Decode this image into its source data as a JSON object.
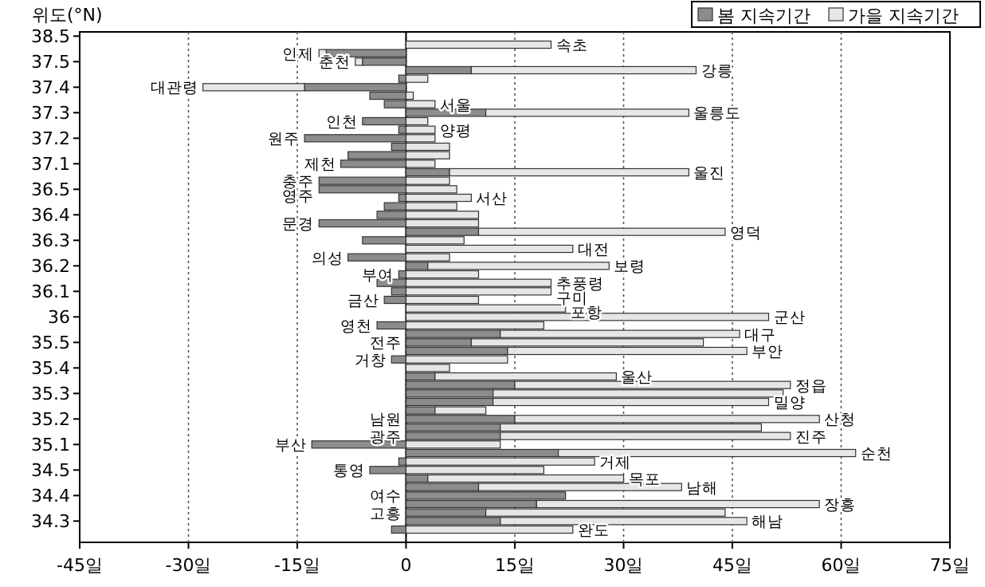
{
  "chart_data": {
    "type": "bar",
    "orientation": "horizontal",
    "stacked": true,
    "ylabel": "위도(°N)",
    "categories": [
      "38.5",
      null,
      null,
      "37.5",
      null,
      null,
      "37.4",
      null,
      null,
      "37.3",
      null,
      null,
      "37.2",
      null,
      null,
      "37.1",
      null,
      null,
      "36.5",
      null,
      null,
      "36.4",
      null,
      null,
      "36.3",
      null,
      null,
      "36.2",
      null,
      null,
      "36.1",
      null,
      null,
      "36",
      null,
      null,
      "35.5",
      null,
      null,
      "35.4",
      null,
      null,
      "35.3",
      null,
      null,
      "35.2",
      null,
      null,
      "35.1",
      null,
      null,
      "34.5",
      null,
      null,
      "34.4",
      null,
      null,
      "34.3",
      null,
      null
    ],
    "series": [
      {
        "name": "봄 지속기간",
        "color": "#8c8c8c",
        "values": [
          null,
          0,
          -11,
          -6,
          9,
          -1,
          -14,
          -5,
          -3,
          11,
          -6,
          -1,
          -14,
          -2,
          -8,
          -9,
          6,
          -12,
          -12,
          -1,
          -3,
          -4,
          -12,
          10,
          -6,
          0,
          -8,
          3,
          -1,
          -4,
          -2,
          -3,
          0,
          0,
          -4,
          13,
          9,
          14,
          -2,
          0,
          4,
          15,
          12,
          12,
          4,
          15,
          13,
          13,
          -13,
          21,
          -1,
          -5,
          3,
          10,
          22,
          18,
          11,
          13,
          -2,
          null
        ],
        "value_labels": [
          null,
          null,
          null,
          null,
          null,
          null,
          null,
          null,
          null,
          null,
          "인천",
          null,
          "원주",
          null,
          null,
          "제천",
          null,
          "충주",
          "영주",
          null,
          null,
          null,
          "문경",
          null,
          null,
          null,
          "의성",
          null,
          "부여",
          null,
          null,
          "금산",
          null,
          null,
          "영천",
          null,
          "전주",
          null,
          "거창",
          null,
          null,
          null,
          null,
          null,
          null,
          "남원",
          null,
          "광주",
          "부산",
          null,
          null,
          "통영",
          null,
          null,
          "여수",
          null,
          "고흥",
          null,
          null,
          null
        ]
      },
      {
        "name": "가을 지속기간",
        "color": "#e6e6e6",
        "values": [
          null,
          20,
          -1,
          -1,
          31,
          3,
          -14,
          1,
          4,
          28,
          3,
          4,
          4,
          6,
          6,
          4,
          33,
          6,
          7,
          9,
          7,
          10,
          10,
          34,
          8,
          23,
          6,
          25,
          10,
          20,
          20,
          10,
          22,
          50,
          19,
          33,
          32,
          33,
          14,
          6,
          25,
          38,
          40,
          38,
          7,
          42,
          36,
          40,
          13,
          41,
          26,
          19,
          27,
          28,
          0,
          39,
          33,
          34,
          23,
          null
        ],
        "value_labels": [
          null,
          "속초",
          "인제",
          "춘천",
          "강릉",
          null,
          "대관령",
          null,
          "서울",
          "울릉도",
          null,
          "양평",
          null,
          null,
          null,
          null,
          "울진",
          null,
          null,
          "서산",
          null,
          null,
          null,
          "영덕",
          null,
          "대전",
          null,
          "보령",
          null,
          "추풍령",
          "구미",
          null,
          "포항",
          "군산",
          null,
          "대구",
          null,
          "부안",
          null,
          null,
          "울산",
          "정읍",
          null,
          "밀양",
          null,
          "산청",
          null,
          "진주",
          null,
          "순천",
          "거제",
          null,
          "목포",
          "남해",
          null,
          "장흥",
          null,
          "해남",
          "완도",
          null
        ]
      }
    ],
    "xlim": [
      -45,
      75
    ],
    "xticks": [
      {
        "value": -45,
        "label": "-45일"
      },
      {
        "value": -30,
        "label": "-30일"
      },
      {
        "value": -15,
        "label": "-15일"
      },
      0,
      {
        "value": 15,
        "label": "15일"
      },
      {
        "value": 30,
        "label": "30일"
      },
      {
        "value": 45,
        "label": "45일"
      },
      {
        "value": 60,
        "label": "60일"
      },
      {
        "value": 75,
        "label": "75일"
      }
    ],
    "grid": "x",
    "legend": "top right"
  }
}
